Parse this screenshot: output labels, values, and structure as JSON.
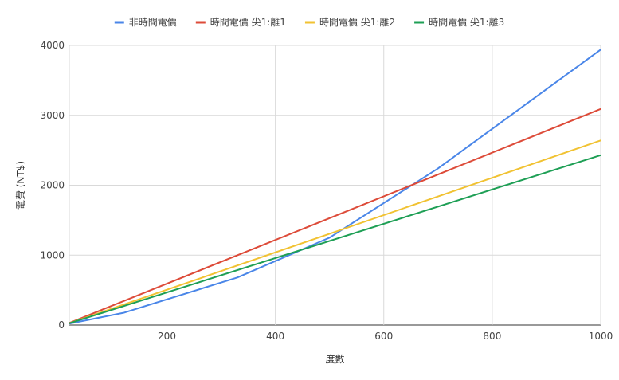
{
  "chart_data": {
    "type": "line",
    "xlabel": "度數",
    "ylabel": "電費 (NT$)",
    "xlim": [
      20,
      1000
    ],
    "ylim": [
      0,
      4000
    ],
    "x_ticks": [
      200,
      400,
      600,
      800,
      1000
    ],
    "y_ticks": [
      0,
      1000,
      2000,
      3000,
      4000
    ],
    "grid": true,
    "legend_position": "top",
    "series": [
      {
        "name": "非時間電價",
        "color": "#4a86e8",
        "points": [
          [
            20,
            20
          ],
          [
            120,
            175
          ],
          [
            330,
            680
          ],
          [
            500,
            1250
          ],
          [
            700,
            2240
          ],
          [
            1000,
            3940
          ]
        ]
      },
      {
        "name": "時間電價 尖1:離1",
        "color": "#dd4b39",
        "points": [
          [
            20,
            30
          ],
          [
            1000,
            3090
          ]
        ]
      },
      {
        "name": "時間電價 尖1:離2",
        "color": "#f1c232",
        "points": [
          [
            20,
            25
          ],
          [
            1000,
            2640
          ]
        ]
      },
      {
        "name": "時間電價 尖1:離3",
        "color": "#1e9f55",
        "points": [
          [
            20,
            25
          ],
          [
            1000,
            2430
          ]
        ]
      }
    ]
  }
}
